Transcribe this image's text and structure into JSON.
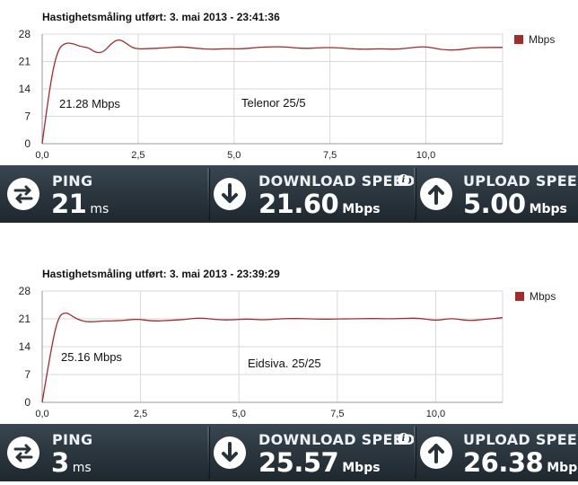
{
  "tests": [
    {
      "title": "Hastighetsmåling utført: 3. mai 2013 - 23:41:36",
      "legend": "Mbps",
      "annotation_speed": "21.28 Mbps",
      "annotation_isp": "Telenor 25/5",
      "ping_label": "PING",
      "ping_value": "21",
      "ping_unit": "ms",
      "download_label": "DOWNLOAD SPEED",
      "download_value": "21.60",
      "download_unit": "Mbps",
      "upload_label": "UPLOAD SPEED",
      "upload_value": "5.00",
      "upload_unit": "Mbps"
    },
    {
      "title": "Hastighetsmåling utført: 3. mai 2013 - 23:39:29",
      "legend": "Mbps",
      "annotation_speed": "25.16 Mbps",
      "annotation_isp": "Eidsiva. 25/25",
      "ping_label": "PING",
      "ping_value": "3",
      "ping_unit": "ms",
      "download_label": "DOWNLOAD SPEED",
      "download_value": "25.57",
      "download_unit": "Mbps",
      "upload_label": "UPLOAD SPEED",
      "upload_value": "26.38",
      "upload_unit": "Mbps"
    }
  ],
  "colors": {
    "line": "#a52a2a",
    "legend_swatch": "#a52a2a",
    "grid": "#d9d9d9",
    "bar_dark": "#1f282f",
    "bar_light": "#3a4752"
  },
  "chart_data": [
    {
      "type": "line",
      "title": "Hastighetsmåling utført: 3. mai 2013 - 23:41:36",
      "xlim": [
        0,
        12
      ],
      "ylim": [
        0,
        28
      ],
      "xticks": [
        "0,0",
        "2,5",
        "5,0",
        "7,5",
        "10,0"
      ],
      "yticks": [
        "0",
        "7",
        "14",
        "21",
        "28"
      ],
      "grid": true,
      "legend_position": "top-right",
      "series": [
        {
          "name": "Mbps",
          "x": [
            0,
            0.2,
            0.4,
            0.6,
            0.8,
            1.0,
            1.2,
            1.4,
            1.6,
            1.8,
            2.0,
            2.2,
            2.4,
            2.8,
            3.2,
            3.6,
            4.0,
            4.4,
            4.8,
            5.2,
            5.6,
            6.0,
            6.4,
            6.8,
            7.2,
            7.6,
            8.0,
            8.4,
            8.8,
            9.2,
            9.6,
            10.0,
            10.4,
            10.8,
            11.2,
            11.6,
            12.0
          ],
          "y": [
            0,
            15,
            24,
            25.8,
            25.6,
            24.8,
            24.6,
            23.2,
            23.4,
            25.6,
            26.8,
            25.6,
            24.2,
            24.3,
            24.5,
            24.8,
            24.4,
            24.1,
            24.3,
            24.2,
            24.6,
            24.8,
            24.7,
            24.3,
            24.5,
            24.6,
            24.3,
            24.1,
            24.3,
            24.1,
            24.5,
            24.9,
            24.0,
            23.9,
            24.5,
            24.6,
            24.6
          ]
        }
      ]
    },
    {
      "type": "line",
      "title": "Hastighetsmåling utført: 3. mai 2013 - 23:39:29",
      "xlim": [
        0,
        11.7
      ],
      "ylim": [
        0,
        28
      ],
      "xticks": [
        "0,0",
        "2,5",
        "5,0",
        "7,5",
        "10,0"
      ],
      "yticks": [
        "0",
        "7",
        "14",
        "21",
        "28"
      ],
      "grid": true,
      "legend_position": "top-right",
      "series": [
        {
          "name": "Mbps",
          "x": [
            0,
            0.2,
            0.4,
            0.6,
            0.8,
            1.0,
            1.2,
            1.6,
            2.0,
            2.4,
            2.8,
            3.2,
            3.6,
            4.0,
            4.4,
            4.8,
            5.2,
            5.6,
            6.0,
            6.4,
            6.8,
            7.2,
            7.6,
            8.0,
            8.4,
            8.8,
            9.2,
            9.6,
            10.0,
            10.4,
            10.8,
            11.2,
            11.7
          ],
          "y": [
            0,
            12,
            21.5,
            22.8,
            21.4,
            20.5,
            20.2,
            20.5,
            20.5,
            21.0,
            20.4,
            20.6,
            20.8,
            21.3,
            20.8,
            20.7,
            21.0,
            20.7,
            21.0,
            21.1,
            21.0,
            20.9,
            21.0,
            21.0,
            21.1,
            21.0,
            21.1,
            21.2,
            20.5,
            21.2,
            20.5,
            20.8,
            21.3
          ]
        }
      ]
    }
  ]
}
